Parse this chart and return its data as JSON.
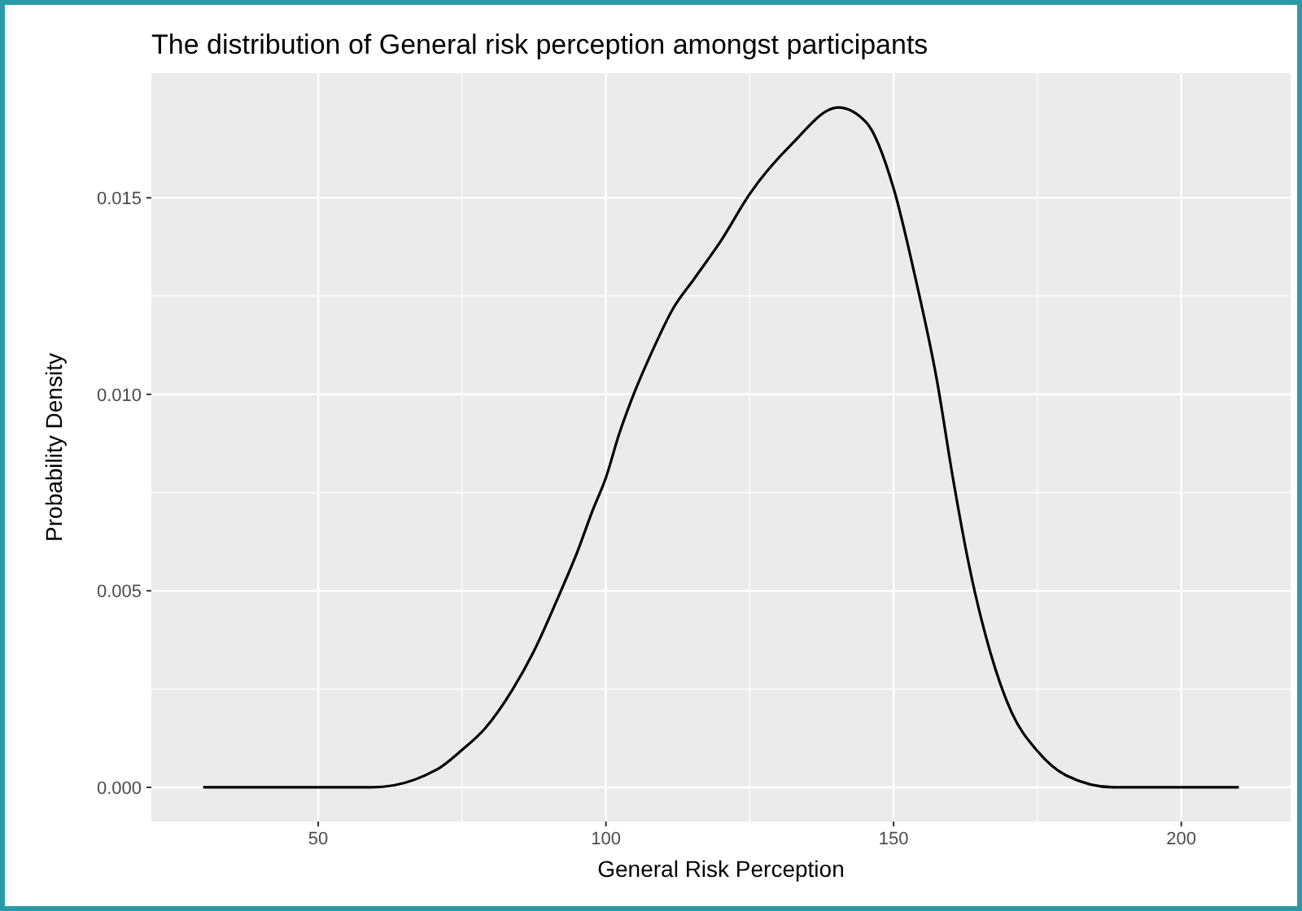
{
  "chart_data": {
    "type": "line",
    "title": "The distribution of General risk perception amongst participants",
    "xlabel": "General Risk Perception",
    "ylabel": "Probability Density",
    "x": [
      30,
      50,
      59.4,
      70.6,
      74.9,
      79,
      83.7,
      87.4,
      92.1,
      94.9,
      97.7,
      100,
      102.3,
      105.1,
      108,
      111.7,
      115.4,
      120.1,
      125,
      132.2,
      140.4,
      145.3,
      150,
      153.7,
      157.5,
      160.3,
      163.1,
      166.8,
      170.5,
      174.9,
      179.9,
      188.3,
      210
    ],
    "series": [
      {
        "color": "#000000",
        "values": [
          0,
          0,
          0,
          0.00045,
          0.00094,
          0.0015,
          0.00247,
          0.00344,
          0.00497,
          0.00594,
          0.00705,
          0.00788,
          0.00899,
          0.0101,
          0.01108,
          0.01219,
          0.01295,
          0.01393,
          0.0151,
          0.01635,
          0.0173,
          0.01691,
          0.01524,
          0.01302,
          0.01038,
          0.00788,
          0.00566,
          0.00344,
          0.00191,
          0.00094,
          0.00031,
          0,
          0
        ]
      }
    ],
    "xlim": [
      21,
      219
    ],
    "xticks": [
      50,
      100,
      150,
      200
    ],
    "ylim": [
      -0.00087,
      0.01817
    ],
    "yticks": [
      {
        "value": 0,
        "label": "0.000"
      },
      {
        "value": 0.005,
        "label": "0.005"
      },
      {
        "value": 0.01,
        "label": "0.010"
      },
      {
        "value": 0.015,
        "label": "0.015"
      }
    ],
    "grid": true,
    "marker": "none",
    "line_style": "solid"
  }
}
